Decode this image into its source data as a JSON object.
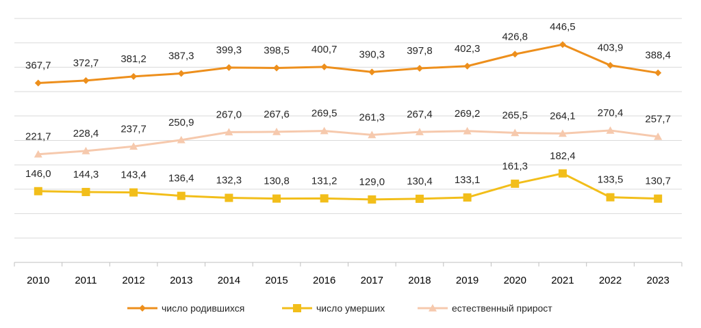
{
  "chart_data": {
    "type": "line",
    "title": "",
    "xlabel": "",
    "ylabel": "",
    "ylim": [
      0,
      500
    ],
    "grid": true,
    "legend": "bottom",
    "categories": [
      "2010",
      "2011",
      "2012",
      "2013",
      "2014",
      "2015",
      "2016",
      "2017",
      "2018",
      "2019",
      "2020",
      "2021",
      "2022",
      "2023"
    ],
    "series": [
      {
        "name": "число родившихся",
        "color": "#ed8f1c",
        "marker": "diamond",
        "values": [
          367.7,
          372.7,
          381.2,
          387.3,
          399.3,
          398.5,
          400.7,
          390.3,
          397.8,
          402.3,
          426.8,
          446.5,
          403.9,
          388.4
        ],
        "labels": [
          "367,7",
          "372,7",
          "381,2",
          "387,3",
          "399,3",
          "398,5",
          "400,7",
          "390,3",
          "397,8",
          "402,3",
          "426,8",
          "446,5",
          "403,9",
          "388,4"
        ]
      },
      {
        "name": "число умерших",
        "color": "#f2be1a",
        "marker": "square",
        "values": [
          146.0,
          144.3,
          143.4,
          136.4,
          132.3,
          130.8,
          131.2,
          129.0,
          130.4,
          133.1,
          161.3,
          182.4,
          133.5,
          130.7
        ],
        "labels": [
          "146,0",
          "144,3",
          "143,4",
          "136,4",
          "132,3",
          "130,8",
          "131,2",
          "129,0",
          "130,4",
          "133,1",
          "161,3",
          "182,4",
          "133,5",
          "130,7"
        ]
      },
      {
        "name": "естественный  прирост",
        "color": "#f6c9ad",
        "marker": "triangle",
        "values": [
          221.7,
          228.4,
          237.7,
          250.9,
          267.0,
          267.6,
          269.5,
          261.3,
          267.4,
          269.2,
          265.5,
          264.1,
          270.4,
          257.7
        ],
        "labels": [
          "221,7",
          "228,4",
          "237,7",
          "250,9",
          "267,0",
          "267,6",
          "269,5",
          "261,3",
          "267,4",
          "269,2",
          "265,5",
          "264,1",
          "270,4",
          "257,7"
        ]
      }
    ]
  }
}
